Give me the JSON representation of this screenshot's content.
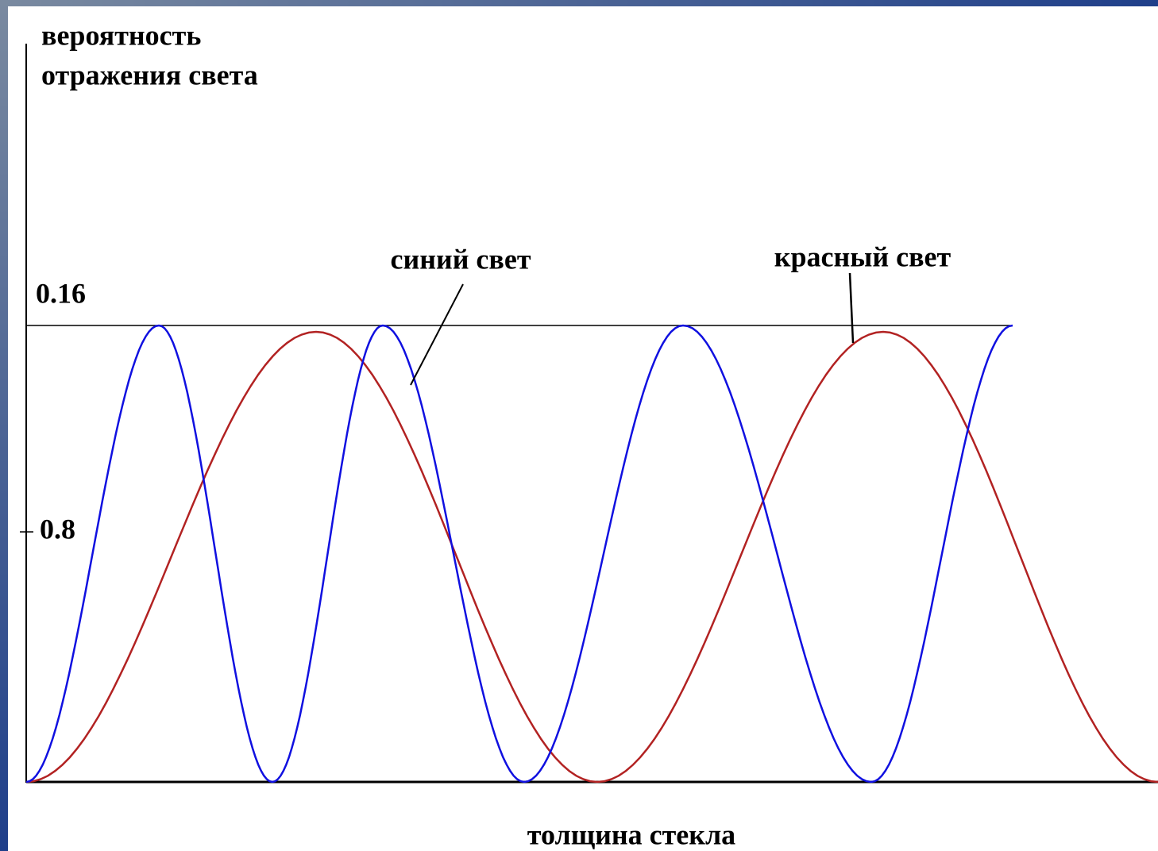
{
  "y_axis_label": [
    "вероятность",
    "отражения света"
  ],
  "tick_labels": [
    "0.16",
    "0.8"
  ],
  "curve_labels": {
    "blue": "синий свет",
    "red": "красный свет"
  },
  "x_axis_label": "толщина стекла"
}
